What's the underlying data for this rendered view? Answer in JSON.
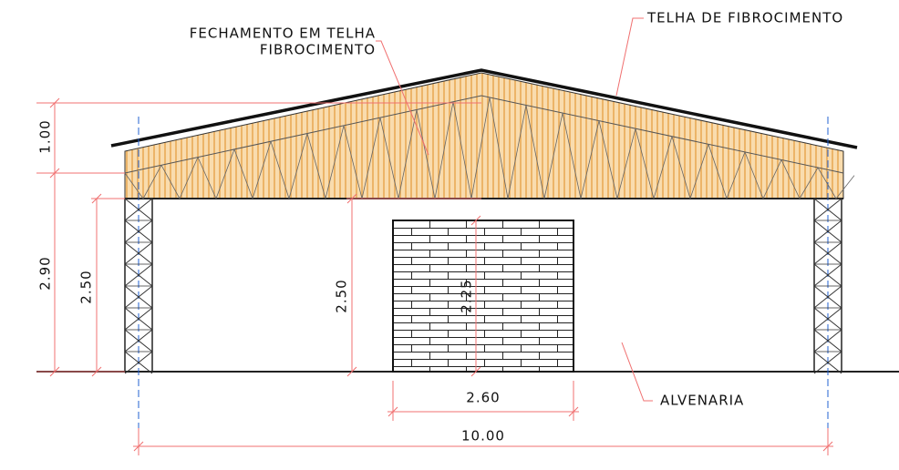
{
  "labels": {
    "roof_closure": [
      "FECHAMENTO EM TELHA",
      "FIBROCIMENTO"
    ],
    "roof_tile": "TELHA DE FIBROCIMENTO",
    "masonry": "ALVENARIA"
  },
  "dimensions": {
    "roof_height": "1.00",
    "total_height": "2.90",
    "column_height_left": "2.50",
    "column_height_inner": "2.50",
    "wall_height": "2.25",
    "wall_width": "2.60",
    "total_width": "10.00"
  }
}
